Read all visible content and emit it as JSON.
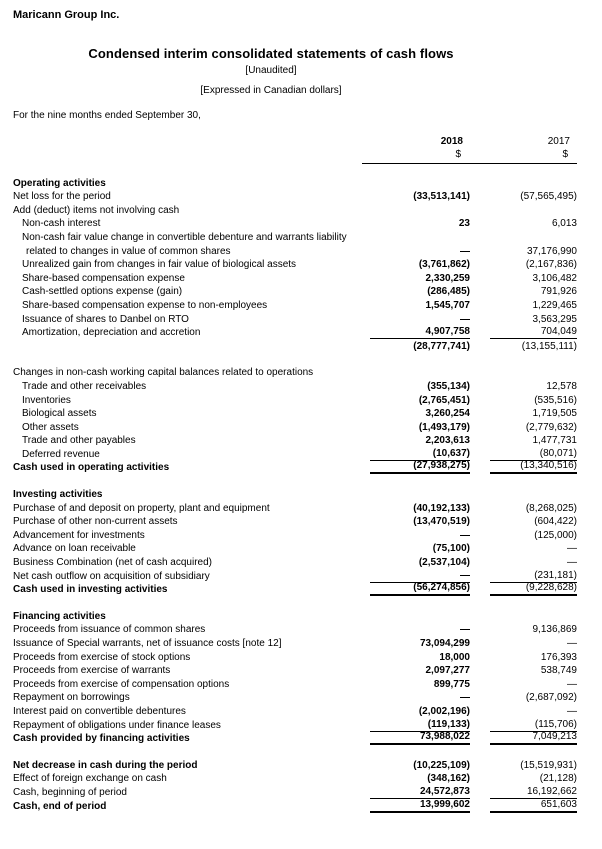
{
  "page": {
    "company": "Maricann Group Inc.",
    "title": "Condensed interim consolidated statements of cash flows",
    "unaudited": "[Unaudited]",
    "currency_note": "[Expressed in Canadian dollars]",
    "period_note": "For the nine months ended September 30,"
  },
  "table": {
    "col_headers": {
      "y2018": "2018",
      "y2017": "2017",
      "dollar_2018": "$",
      "dollar_2017": "$"
    },
    "rows": [
      {
        "label": "Operating activities",
        "v2018": "",
        "v2017": "",
        "indent": 0,
        "bold": true,
        "line_below": "",
        "gap_before": false
      },
      {
        "label": "Net loss for the period",
        "v2018": "(33,513,141)",
        "v2017": "(57,565,495)",
        "indent": 0,
        "bold": false,
        "line_below": "",
        "gap_before": false
      },
      {
        "label": "Add (deduct) items not involving cash",
        "v2018": "",
        "v2017": "",
        "indent": 0,
        "bold": false,
        "line_below": "",
        "gap_before": false
      },
      {
        "label": "Non-cash interest",
        "v2018": "23",
        "v2017": "6,013",
        "indent": 1,
        "bold": false,
        "line_below": "",
        "gap_before": false
      },
      {
        "label": "Non-cash fair value change in convertible debenture and warrants liability",
        "v2018": "",
        "v2017": "",
        "indent": 1,
        "bold": false,
        "line_below": "",
        "gap_before": false
      },
      {
        "label": "related to changes in value of common shares",
        "v2018": "—",
        "v2017": "37,176,990",
        "indent": 2,
        "bold": false,
        "line_below": "",
        "gap_before": false
      },
      {
        "label": "Unrealized gain from changes in fair value of biological assets",
        "v2018": "(3,761,862)",
        "v2017": "(2,167,836)",
        "indent": 1,
        "bold": false,
        "line_below": "",
        "gap_before": false
      },
      {
        "label": "Share-based compensation expense",
        "v2018": "2,330,259",
        "v2017": "3,106,482",
        "indent": 1,
        "bold": false,
        "line_below": "",
        "gap_before": false
      },
      {
        "label": "Cash-settled options expense (gain)",
        "v2018": "(286,485)",
        "v2017": "791,926",
        "indent": 1,
        "bold": false,
        "line_below": "",
        "gap_before": false
      },
      {
        "label": "Share-based compensation expense to non-employees",
        "v2018": "1,545,707",
        "v2017": "1,229,465",
        "indent": 1,
        "bold": false,
        "line_below": "",
        "gap_before": false
      },
      {
        "label": "Issuance of shares to Danbel on RTO",
        "v2018": "—",
        "v2017": "3,563,295",
        "indent": 1,
        "bold": false,
        "line_below": "",
        "gap_before": false
      },
      {
        "label": "Amortization, depreciation and accretion",
        "v2018": "4,907,758",
        "v2017": "704,049",
        "indent": 1,
        "bold": false,
        "line_below": "thin",
        "gap_before": false
      },
      {
        "label": "",
        "v2018": "(28,777,741)",
        "v2017": "(13,155,111)",
        "indent": 0,
        "bold": false,
        "line_below": "",
        "gap_before": false
      },
      {
        "label": "Changes in non-cash working capital balances related to operations",
        "v2018": "",
        "v2017": "",
        "indent": 0,
        "bold": false,
        "line_below": "",
        "gap_before": true
      },
      {
        "label": "Trade and other receivables",
        "v2018": "(355,134)",
        "v2017": "12,578",
        "indent": 1,
        "bold": false,
        "line_below": "",
        "gap_before": false
      },
      {
        "label": "Inventories",
        "v2018": "(2,765,451)",
        "v2017": "(535,516)",
        "indent": 1,
        "bold": false,
        "line_below": "",
        "gap_before": false
      },
      {
        "label": "Biological assets",
        "v2018": "3,260,254",
        "v2017": "1,719,505",
        "indent": 1,
        "bold": false,
        "line_below": "",
        "gap_before": false
      },
      {
        "label": "Other assets",
        "v2018": "(1,493,179)",
        "v2017": "(2,779,632)",
        "indent": 1,
        "bold": false,
        "line_below": "",
        "gap_before": false
      },
      {
        "label": "Trade and other payables",
        "v2018": "2,203,613",
        "v2017": "1,477,731",
        "indent": 1,
        "bold": false,
        "line_below": "",
        "gap_before": false
      },
      {
        "label": "Deferred revenue",
        "v2018": "(10,637)",
        "v2017": "(80,071)",
        "indent": 1,
        "bold": false,
        "line_below": "thin",
        "gap_before": false
      },
      {
        "label": "Cash used in operating activities",
        "v2018": "(27,938,275)",
        "v2017": "(13,340,516)",
        "indent": 0,
        "bold": true,
        "line_below": "thick",
        "gap_before": false
      },
      {
        "label": "Investing activities",
        "v2018": "",
        "v2017": "",
        "indent": 0,
        "bold": true,
        "line_below": "",
        "gap_before": true
      },
      {
        "label": "Purchase of and deposit on property, plant and equipment",
        "v2018": "(40,192,133)",
        "v2017": "(8,268,025)",
        "indent": 0,
        "bold": false,
        "line_below": "",
        "gap_before": false
      },
      {
        "label": "Purchase of other non-current assets",
        "v2018": "(13,470,519)",
        "v2017": "(604,422)",
        "indent": 0,
        "bold": false,
        "line_below": "",
        "gap_before": false
      },
      {
        "label": "Advancement for investments",
        "v2018": "—",
        "v2017": "(125,000)",
        "indent": 0,
        "bold": false,
        "line_below": "",
        "gap_before": false
      },
      {
        "label": "Advance on loan receivable",
        "v2018": "(75,100)",
        "v2017": "—",
        "indent": 0,
        "bold": false,
        "line_below": "",
        "gap_before": false
      },
      {
        "label": "Business Combination (net of cash acquired)",
        "v2018": "(2,537,104)",
        "v2017": "—",
        "indent": 0,
        "bold": false,
        "line_below": "",
        "gap_before": false
      },
      {
        "label": "Net cash outflow on acquisition of subsidiary",
        "v2018": "—",
        "v2017": "(231,181)",
        "indent": 0,
        "bold": false,
        "line_below": "thin",
        "gap_before": false
      },
      {
        "label": "Cash used in investing activities",
        "v2018": "(56,274,856)",
        "v2017": "(9,228,628)",
        "indent": 0,
        "bold": true,
        "line_below": "thick",
        "gap_before": false
      },
      {
        "label": "Financing activities",
        "v2018": "",
        "v2017": "",
        "indent": 0,
        "bold": true,
        "line_below": "",
        "gap_before": true
      },
      {
        "label": "Proceeds from issuance of common shares",
        "v2018": "—",
        "v2017": "9,136,869",
        "indent": 0,
        "bold": false,
        "line_below": "",
        "gap_before": false
      },
      {
        "label": "Issuance of Special warrants, net of issuance costs [note 12]",
        "v2018": "73,094,299",
        "v2017": "—",
        "indent": 0,
        "bold": false,
        "line_below": "",
        "gap_before": false
      },
      {
        "label": "Proceeds from exercise of stock options",
        "v2018": "18,000",
        "v2017": "176,393",
        "indent": 0,
        "bold": false,
        "line_below": "",
        "gap_before": false
      },
      {
        "label": "Proceeds from exercise of warrants",
        "v2018": "2,097,277",
        "v2017": "538,749",
        "indent": 0,
        "bold": false,
        "line_below": "",
        "gap_before": false
      },
      {
        "label": "Proceeds from exercise of compensation options",
        "v2018": "899,775",
        "v2017": "—",
        "indent": 0,
        "bold": false,
        "line_below": "",
        "gap_before": false
      },
      {
        "label": "Repayment on borrowings",
        "v2018": "—",
        "v2017": "(2,687,092)",
        "indent": 0,
        "bold": false,
        "line_below": "",
        "gap_before": false
      },
      {
        "label": "Interest paid on convertible debentures",
        "v2018": "(2,002,196)",
        "v2017": "—",
        "indent": 0,
        "bold": false,
        "line_below": "",
        "gap_before": false
      },
      {
        "label": "Repayment of obligations under finance leases",
        "v2018": "(119,133)",
        "v2017": "(115,706)",
        "indent": 0,
        "bold": false,
        "line_below": "thin",
        "gap_before": false
      },
      {
        "label": "Cash provided by financing activities",
        "v2018": "73,988,022",
        "v2017": "7,049,213",
        "indent": 0,
        "bold": true,
        "line_below": "thick",
        "gap_before": false
      },
      {
        "label": "Net decrease in cash during the period",
        "v2018": "(10,225,109)",
        "v2017": "(15,519,931)",
        "indent": 0,
        "bold": true,
        "line_below": "",
        "gap_before": true
      },
      {
        "label": "Effect of foreign exchange on cash",
        "v2018": "(348,162)",
        "v2017": "(21,128)",
        "indent": 0,
        "bold": false,
        "line_below": "",
        "gap_before": false
      },
      {
        "label": "Cash, beginning of period",
        "v2018": "24,572,873",
        "v2017": "16,192,662",
        "indent": 0,
        "bold": false,
        "line_below": "thin",
        "gap_before": false
      },
      {
        "label": "Cash, end of period",
        "v2018": "13,999,602",
        "v2017": "651,603",
        "indent": 0,
        "bold": true,
        "line_below": "thick",
        "gap_before": false
      }
    ]
  }
}
